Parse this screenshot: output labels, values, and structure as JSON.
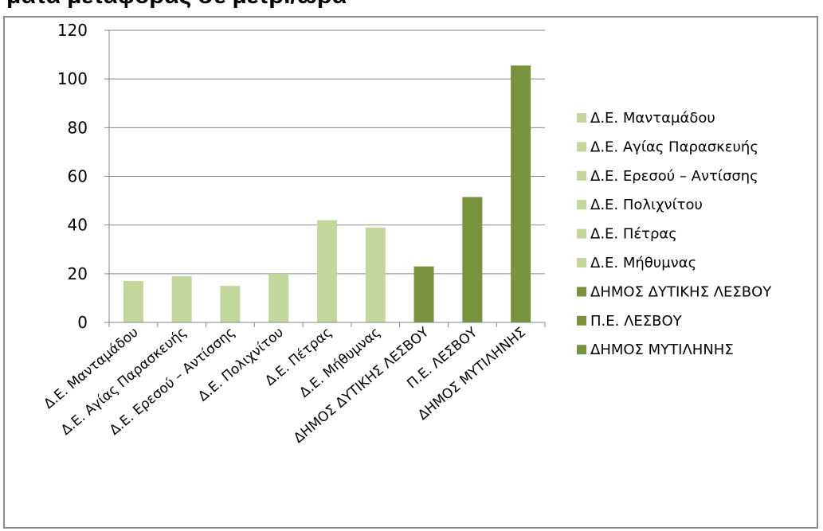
{
  "header": {
    "clipped_title": "ματα μεταφοράς σε μετρ./ώρα"
  },
  "colors": {
    "light_green": "#c3d69b",
    "dark_green": "#77933c",
    "grid": "#868686",
    "axis": "#868686"
  },
  "chart_data": {
    "type": "bar",
    "title": "",
    "xlabel": "",
    "ylabel": "",
    "ylim": [
      0,
      120
    ],
    "yticks": [
      0,
      20,
      40,
      60,
      80,
      100,
      120
    ],
    "grid": true,
    "legend_position": "right",
    "categories": [
      "Δ.Ε. Μανταμάδου",
      "Δ.Ε. Αγίας Παρασκευής",
      "Δ.Ε. Ερεσού – Αντίσσης",
      "Δ.Ε. Πολιχνίτου",
      "Δ.Ε. Πέτρας",
      "Δ.Ε. Μήθυμνας",
      "ΔΗΜΟΣ ΔΥΤΙΚΗΣ ΛΕΣΒΟΥ",
      "Π.Ε. ΛΕΣΒΟΥ",
      "ΔΗΜΟΣ ΜΥΤΙΛΗΝΗΣ"
    ],
    "values": [
      17,
      19,
      15,
      20,
      42,
      39,
      23,
      51.5,
      105.5
    ],
    "bar_colors": [
      "#c3d69b",
      "#c3d69b",
      "#c3d69b",
      "#c3d69b",
      "#c3d69b",
      "#c3d69b",
      "#77933c",
      "#77933c",
      "#77933c"
    ],
    "legend": [
      "Δ.Ε. Μανταμάδου",
      "Δ.Ε. Αγίας Παρασκευής",
      "Δ.Ε. Ερεσού – Αντίσσης",
      "Δ.Ε. Πολιχνίτου",
      "Δ.Ε. Πέτρας",
      "Δ.Ε. Μήθυμνας",
      "ΔΗΜΟΣ ΔΥΤΙΚΗΣ ΛΕΣΒΟΥ",
      "Π.Ε. ΛΕΣΒΟΥ",
      "ΔΗΜΟΣ ΜΥΤΙΛΗΝΗΣ"
    ]
  }
}
